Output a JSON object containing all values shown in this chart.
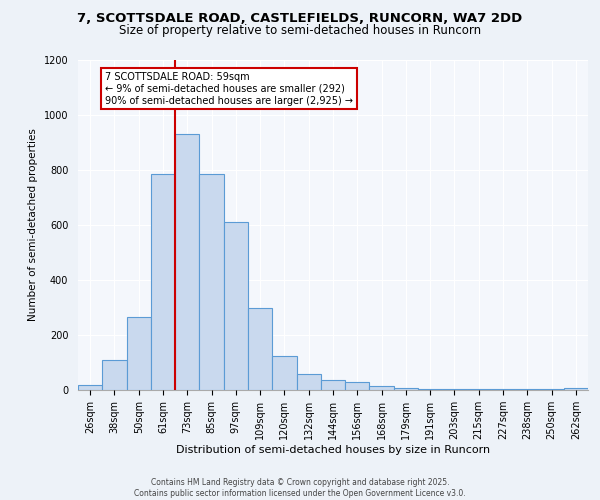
{
  "title_line1": "7, SCOTTSDALE ROAD, CASTLEFIELDS, RUNCORN, WA7 2DD",
  "title_line2": "Size of property relative to semi-detached houses in Runcorn",
  "xlabel": "Distribution of semi-detached houses by size in Runcorn",
  "ylabel": "Number of semi-detached properties",
  "categories": [
    "26sqm",
    "38sqm",
    "50sqm",
    "61sqm",
    "73sqm",
    "85sqm",
    "97sqm",
    "109sqm",
    "120sqm",
    "132sqm",
    "144sqm",
    "156sqm",
    "168sqm",
    "179sqm",
    "191sqm",
    "203sqm",
    "215sqm",
    "227sqm",
    "238sqm",
    "250sqm",
    "262sqm"
  ],
  "values": [
    18,
    110,
    265,
    785,
    930,
    785,
    610,
    300,
    125,
    60,
    38,
    30,
    15,
    8,
    5,
    5,
    5,
    2,
    2,
    2,
    8
  ],
  "bar_color": "#c9d9ee",
  "bar_edge_color": "#5b9bd5",
  "vline_x": 3.5,
  "vline_color": "#cc0000",
  "annotation_title": "7 SCOTTSDALE ROAD: 59sqm",
  "annotation_line2": "← 9% of semi-detached houses are smaller (292)",
  "annotation_line3": "90% of semi-detached houses are larger (2,925) →",
  "annotation_box_color": "#ffffff",
  "annotation_box_edge": "#cc0000",
  "ylim": [
    0,
    1200
  ],
  "yticks": [
    0,
    200,
    400,
    600,
    800,
    1000,
    1200
  ],
  "footer_line1": "Contains HM Land Registry data © Crown copyright and database right 2025.",
  "footer_line2": "Contains public sector information licensed under the Open Government Licence v3.0.",
  "bg_color": "#edf2f8",
  "plot_bg_color": "#f4f7fc",
  "grid_color": "#ffffff",
  "title_fontsize": 9.5,
  "subtitle_fontsize": 8.5,
  "ylabel_fontsize": 7.5,
  "xlabel_fontsize": 8.0,
  "tick_fontsize": 7.0,
  "footer_fontsize": 5.5,
  "ann_fontsize": 7.0
}
